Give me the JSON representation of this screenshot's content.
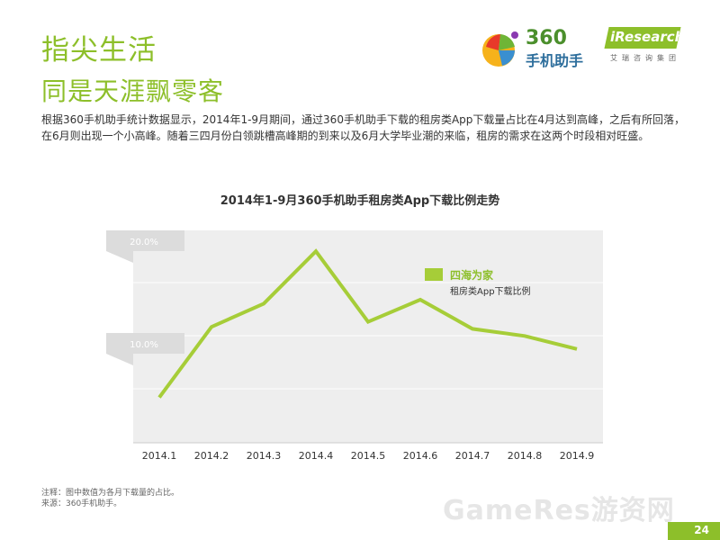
{
  "header": {
    "title": "指尖生活",
    "subtitle": "同是天涯飘零客",
    "logo_360": "360",
    "logo_360_cn": "手机助手",
    "logo_ir": "iResearch",
    "logo_ir_cn": "艾瑞咨询集团"
  },
  "description": "根据360手机助手统计数据显示，2014年1-9月期间，通过360手机助手下载的租房类App下载量占比在4月达到高峰，之后有所回落，在6月则出现一个小高峰。随着三四月份白领跳槽高峰期的到来以及6月大学毕业潮的来临，租房的需求在这两个时段相对旺盛。",
  "chart_data": {
    "type": "line",
    "title": "2014年1-9月360手机助手租房类App下载比例走势",
    "categories": [
      "2014.1",
      "2014.2",
      "2014.3",
      "2014.4",
      "2014.5",
      "2014.6",
      "2014.7",
      "2014.8",
      "2014.9"
    ],
    "series": [
      {
        "name": "四海为家",
        "values": [
          4.5,
          11.5,
          13.8,
          19.0,
          12.0,
          14.2,
          11.3,
          10.6,
          9.3
        ]
      }
    ],
    "y_tick_labels": [
      "20.0%",
      "10.0%"
    ],
    "ylim": [
      0,
      20
    ],
    "legend_sub": "租房类App下载比例",
    "legend_position": "top-right",
    "line_color": "#a6cd38",
    "plot_bg": "#eeeeee",
    "grid": true
  },
  "notes": {
    "note": "注释：图中数值为各月下载量的占比。",
    "source": "来源：360手机助手。"
  },
  "watermark": "GameRes游资网",
  "page_number": "24",
  "colors": {
    "brand_green": "#8dbf2a"
  }
}
